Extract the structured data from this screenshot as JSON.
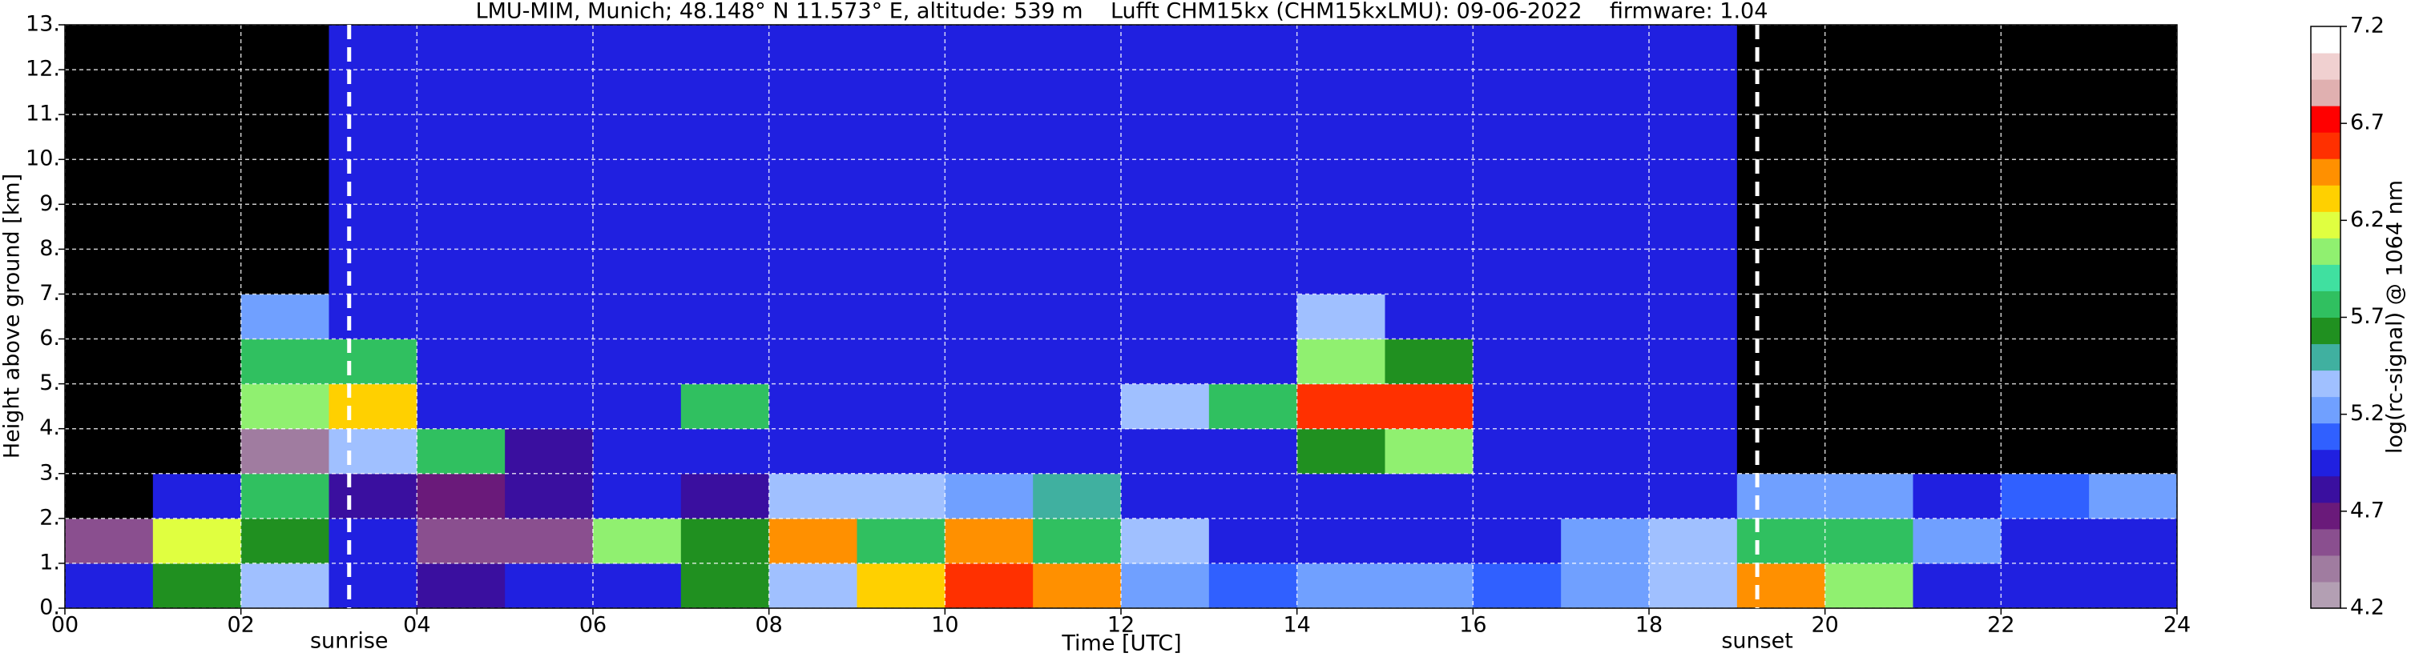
{
  "chart_data": {
    "type": "heatmap",
    "title": "LMU-MIM, Munich; 48.148° N 11.573° E, altitude: 539 m    Lufft CHM15kx (CHM15kxLMU): 09-06-2022    firmware: 1.04",
    "x_label": "Time [UTC]",
    "y_label": "Height above ground [km]",
    "colorbar_label": "log(rc-signal) @ 1064 nm",
    "xlim": [
      0,
      24
    ],
    "ylim": [
      0,
      13
    ],
    "xticks": [
      {
        "value": 0,
        "label": "00"
      },
      {
        "value": 2,
        "label": "02"
      },
      {
        "value": 4,
        "label": "04"
      },
      {
        "value": 6,
        "label": "06"
      },
      {
        "value": 8,
        "label": "08"
      },
      10,
      12,
      14,
      16,
      18,
      20,
      22,
      24
    ],
    "yticks": [
      {
        "value": 0,
        "label": "0."
      },
      {
        "value": 1,
        "label": "1."
      },
      {
        "value": 2,
        "label": "2."
      },
      {
        "value": 3,
        "label": "3."
      },
      {
        "value": 4,
        "label": "4."
      },
      {
        "value": 5,
        "label": "5."
      },
      {
        "value": 6,
        "label": "6."
      },
      {
        "value": 7,
        "label": "7."
      },
      {
        "value": 8,
        "label": "8."
      },
      {
        "value": 9,
        "label": "9."
      },
      {
        "value": 10,
        "label": "10."
      },
      {
        "value": 11,
        "label": "11."
      },
      {
        "value": 12,
        "label": "12."
      },
      {
        "value": 13,
        "label": "13."
      }
    ],
    "grid": true,
    "x_bins": [
      0,
      1,
      2,
      3,
      4,
      5,
      6,
      7,
      8,
      9,
      10,
      11,
      12,
      13,
      14,
      15,
      16,
      17,
      18,
      19,
      20,
      21,
      22,
      23,
      24
    ],
    "y_bins": [
      0,
      1,
      2,
      3,
      4,
      5,
      6,
      7,
      8,
      9,
      10,
      11,
      12,
      13
    ],
    "z": [
      [
        5.0,
        5.6,
        5.3,
        4.9,
        4.8,
        4.9,
        5.0,
        5.6,
        5.4,
        6.3,
        6.6,
        6.5,
        5.2,
        5.1,
        5.2,
        5.2,
        5.1,
        5.2,
        5.4,
        6.5,
        6.0,
        5.0,
        4.9,
        4.9
      ],
      [
        4.5,
        6.2,
        5.6,
        4.9,
        4.6,
        4.6,
        6.0,
        5.6,
        6.4,
        5.8,
        6.5,
        5.8,
        5.4,
        5.0,
        4.9,
        4.9,
        5.0,
        5.2,
        5.3,
        5.8,
        5.8,
        5.2,
        5.0,
        5.0
      ],
      [
        4.0,
        5.0,
        5.7,
        4.8,
        4.7,
        4.8,
        4.9,
        4.8,
        5.4,
        5.4,
        5.2,
        5.5,
        5.0,
        4.9,
        4.9,
        4.9,
        4.9,
        4.9,
        4.9,
        5.2,
        5.2,
        5.0,
        5.1,
        5.2
      ],
      [
        4.0,
        4.0,
        4.4,
        5.4,
        5.8,
        4.8,
        4.9,
        4.9,
        4.9,
        4.9,
        4.9,
        4.9,
        4.9,
        4.9,
        5.6,
        6.0,
        4.9,
        4.9,
        4.9,
        4.1,
        4.0,
        4.0,
        4.0,
        4.0
      ],
      [
        4.0,
        4.0,
        6.0,
        6.3,
        5.0,
        4.9,
        4.9,
        5.8,
        4.9,
        4.9,
        4.9,
        4.9,
        5.4,
        5.8,
        6.6,
        6.6,
        4.9,
        4.9,
        4.9,
        4.1,
        4.0,
        4.0,
        4.0,
        4.1
      ],
      [
        4.0,
        4.0,
        5.8,
        5.8,
        4.9,
        4.9,
        4.9,
        4.9,
        4.9,
        4.9,
        4.9,
        4.9,
        4.9,
        4.9,
        6.0,
        5.6,
        4.9,
        4.9,
        4.9,
        4.1,
        4.0,
        4.0,
        4.0,
        4.0
      ],
      [
        4.0,
        4.0,
        5.2,
        4.9,
        4.9,
        4.9,
        4.9,
        4.9,
        4.9,
        4.9,
        4.9,
        4.9,
        4.9,
        4.9,
        5.4,
        4.9,
        4.9,
        4.9,
        4.9,
        4.1,
        4.0,
        4.0,
        4.0,
        4.0
      ],
      [
        4.0,
        4.0,
        4.1,
        4.9,
        4.9,
        4.9,
        4.9,
        4.9,
        4.9,
        4.9,
        4.9,
        4.9,
        4.9,
        4.9,
        4.9,
        4.9,
        4.9,
        4.9,
        4.9,
        4.1,
        4.0,
        4.0,
        4.0,
        4.0
      ],
      [
        4.0,
        4.0,
        4.1,
        4.9,
        4.9,
        4.9,
        4.9,
        4.9,
        5.0,
        5.0,
        5.0,
        5.0,
        5.0,
        4.9,
        4.9,
        4.9,
        4.9,
        4.9,
        4.9,
        4.1,
        4.0,
        4.0,
        4.0,
        4.0
      ],
      [
        4.0,
        4.0,
        4.1,
        4.9,
        4.9,
        4.9,
        4.9,
        4.9,
        5.0,
        5.0,
        5.0,
        5.0,
        5.0,
        4.9,
        4.9,
        4.9,
        4.9,
        4.9,
        4.9,
        4.1,
        4.0,
        4.0,
        4.0,
        4.0
      ],
      [
        4.0,
        4.0,
        4.1,
        4.9,
        4.9,
        4.9,
        4.9,
        4.9,
        4.9,
        4.9,
        4.9,
        4.9,
        4.9,
        4.9,
        4.9,
        4.9,
        4.9,
        4.9,
        4.9,
        4.1,
        4.0,
        4.0,
        4.0,
        4.0
      ],
      [
        4.0,
        4.0,
        4.1,
        4.9,
        4.9,
        4.9,
        4.9,
        4.9,
        4.9,
        4.9,
        4.9,
        4.9,
        4.9,
        4.9,
        4.9,
        4.9,
        4.9,
        4.9,
        4.9,
        4.1,
        4.0,
        4.0,
        4.0,
        4.0
      ],
      [
        4.0,
        4.0,
        4.1,
        4.9,
        4.9,
        4.9,
        4.9,
        4.9,
        4.9,
        4.9,
        4.9,
        4.9,
        4.9,
        4.9,
        4.9,
        4.9,
        4.9,
        4.9,
        4.9,
        4.1,
        4.0,
        4.0,
        4.0,
        4.0
      ]
    ],
    "zlim": [
      4.2,
      7.2
    ],
    "zticks": [
      4.2,
      4.7,
      5.2,
      5.7,
      6.2,
      6.7,
      7.2
    ],
    "colors": [
      "#b39fb3",
      "#a07ca0",
      "#8a4f8f",
      "#6a1a7a",
      "#3a0f9f",
      "#2020e0",
      "#3060ff",
      "#70a0ff",
      "#a0c0ff",
      "#40b0a0",
      "#209020",
      "#30c060",
      "#40e0a0",
      "#90f070",
      "#e0ff40",
      "#ffd000",
      "#ff9000",
      "#ff3000",
      "#ff0000",
      "#e0b0b0",
      "#f0d0d0",
      "#ffffff"
    ],
    "under_color": "#000000",
    "annotations": [
      {
        "text": "sunrise",
        "x": 3.23
      },
      {
        "text": "sunset",
        "x": 19.23
      }
    ]
  }
}
